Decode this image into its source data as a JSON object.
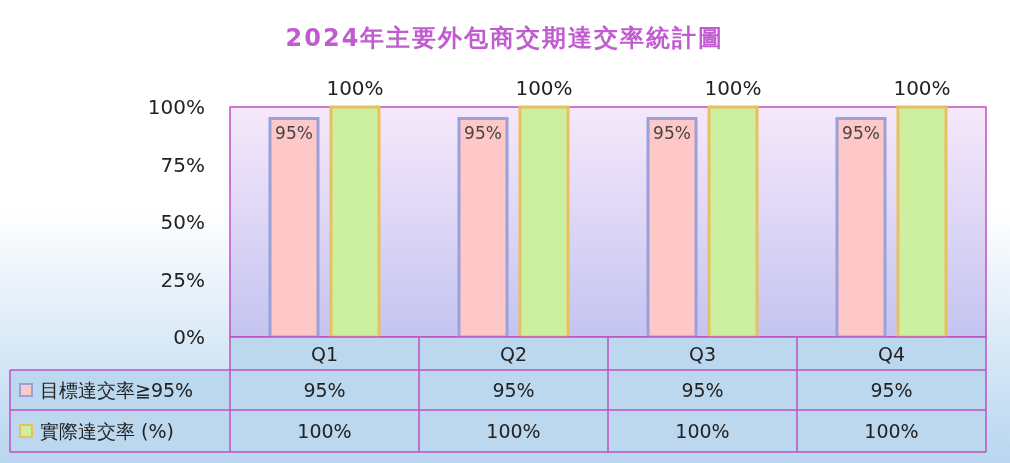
{
  "chart_data": {
    "type": "bar",
    "title": "2024年主要外包商交期達交率統計圖",
    "categories": [
      "Q1",
      "Q2",
      "Q3",
      "Q4"
    ],
    "series": [
      {
        "name": "目標達交率≧95%",
        "color": "#ffc8c8",
        "values": [
          95,
          95,
          95,
          95
        ],
        "value_labels": [
          "95%",
          "95%",
          "95%",
          "95%"
        ]
      },
      {
        "name": "實際達交率 (%)",
        "color": "#ccf0a0",
        "values": [
          100,
          100,
          100,
          100
        ],
        "value_labels": [
          "100%",
          "100%",
          "100%",
          "100%"
        ]
      }
    ],
    "ylim": [
      0,
      100
    ],
    "yticks": [
      {
        "value": 0,
        "label": "0%"
      },
      {
        "value": 25,
        "label": "25%"
      },
      {
        "value": 50,
        "label": "50%"
      },
      {
        "value": 75,
        "label": "75%"
      },
      {
        "value": 100,
        "label": "100%"
      }
    ],
    "grid": false,
    "legend": "bottom"
  }
}
